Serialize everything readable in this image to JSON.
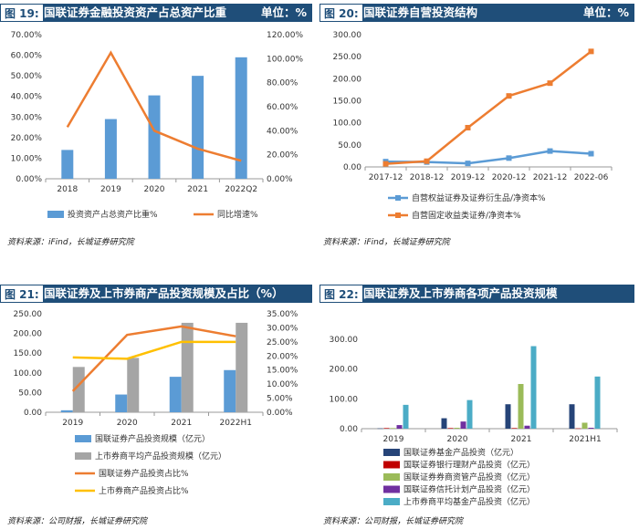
{
  "charts": [
    {
      "id": "19",
      "header": {
        "num": "图 19:",
        "title": "国联证券金融投资资产占总资产比重",
        "unit": "单位：%"
      },
      "source": "资料来源：iFind，长城证券研究院"
    },
    {
      "id": "20",
      "header": {
        "num": "图 20:",
        "title": "国联证券自营投资结构",
        "unit": "单位：%"
      },
      "source": "资料来源：iFind，长城证券研究院"
    },
    {
      "id": "21",
      "header": {
        "num": "图 21:",
        "title": "国联证券及上市券商产品投资规模及占比（%）",
        "unit": ""
      },
      "source": "资料来源：公司财报，长城证券研究院"
    },
    {
      "id": "22",
      "header": {
        "num": "图 22:",
        "title": "国联证券及上市券商各项产品投资规模",
        "unit": ""
      },
      "source": "资料来源：公司财报，长城证券研究院"
    }
  ],
  "colors": {
    "header_bg": "#1f4e79",
    "blue": "#5b9bd5",
    "orange": "#ed7d31",
    "gray": "#a5a5a5",
    "yellow": "#ffc000",
    "navy": "#264478",
    "red": "#c00000",
    "green": "#9bbb59",
    "purple": "#7030a0",
    "teal": "#4bacc6"
  },
  "chart_data": [
    {
      "type": "bar",
      "categories": [
        "2018",
        "2019",
        "2020",
        "2021",
        "2022Q2"
      ],
      "series": [
        {
          "name": "投资资产占总资产比重%",
          "type": "bar",
          "axis": "left",
          "values": [
            14.0,
            29.0,
            40.5,
            50.0,
            59.0
          ]
        },
        {
          "name": "同比增速%",
          "type": "line",
          "axis": "right",
          "values": [
            43.0,
            105.0,
            40.0,
            25.0,
            15.0
          ]
        }
      ],
      "y_left": {
        "min": 0,
        "max": 70,
        "step": 10,
        "ticks": [
          "0.00%",
          "10.00%",
          "20.00%",
          "30.00%",
          "40.00%",
          "50.00%",
          "60.00%",
          "70.00%"
        ]
      },
      "y_right": {
        "min": 0,
        "max": 120,
        "step": 20,
        "ticks": [
          "0.00%",
          "20.00%",
          "40.00%",
          "60.00%",
          "80.00%",
          "100.00%",
          "120.00%"
        ]
      },
      "legend": "bottom"
    },
    {
      "type": "line",
      "categories": [
        "2017-12",
        "2018-12",
        "2019-12",
        "2020-12",
        "2021-12",
        "2022-06"
      ],
      "series": [
        {
          "name": "自营权益证券及证券衍生品/净资本%",
          "values": [
            12,
            11,
            8,
            20,
            36,
            30
          ]
        },
        {
          "name": "自营固定收益类证券/净资本%",
          "values": [
            7,
            13,
            89,
            161,
            190,
            262
          ]
        }
      ],
      "y_left": {
        "min": 0,
        "max": 300,
        "step": 50,
        "ticks": [
          "0.00",
          "50.00",
          "100.00",
          "150.00",
          "200.00",
          "250.00",
          "300.00"
        ]
      },
      "legend": "bottom"
    },
    {
      "type": "bar",
      "categories": [
        "2019",
        "2020",
        "2021",
        "2022H1"
      ],
      "series": [
        {
          "name": "国联证券产品投资规模（亿元）",
          "type": "bar",
          "axis": "left",
          "values": [
            5,
            45,
            90,
            107
          ]
        },
        {
          "name": "上市券商平均产品投资规模（亿元）",
          "type": "bar",
          "axis": "left",
          "values": [
            115,
            138,
            227,
            227
          ]
        },
        {
          "name": "国联证券产品投资占比%",
          "type": "line",
          "axis": "right",
          "values": [
            7.5,
            27.5,
            30.5,
            27.0
          ]
        },
        {
          "name": "上市券商产品投资占比%",
          "type": "line",
          "axis": "right",
          "values": [
            19.5,
            19.0,
            25.0,
            25.0
          ]
        }
      ],
      "y_left": {
        "min": 0,
        "max": 250,
        "step": 50,
        "ticks": [
          "0.00",
          "50.00",
          "100.00",
          "150.00",
          "200.00",
          "250.00"
        ]
      },
      "y_right": {
        "min": 0,
        "max": 35,
        "step": 5,
        "ticks": [
          "0.00%",
          "5.00%",
          "10.00%",
          "15.00%",
          "20.00%",
          "25.00%",
          "30.00%",
          "35.00%"
        ]
      },
      "legend": "bottom"
    },
    {
      "type": "bar",
      "categories": [
        "2019",
        "2020",
        "2021",
        "2021H1"
      ],
      "series": [
        {
          "name": "国联证券基金产品投资（亿元）",
          "values": [
            1,
            35,
            82,
            82
          ]
        },
        {
          "name": "国联证券银行理财产品投资（亿元）",
          "values": [
            2,
            2,
            2,
            1
          ]
        },
        {
          "name": "国联证券券商资管产品投资（亿元）",
          "values": [
            2,
            3,
            150,
            20
          ]
        },
        {
          "name": "国联证券信托计划产品投资（亿元）",
          "values": [
            12,
            24,
            10,
            3
          ]
        },
        {
          "name": "上市券商平均基金产品投资（亿元）",
          "values": [
            80,
            96,
            277,
            175
          ]
        }
      ],
      "extra_series_note": "",
      "y_left": {
        "min": 0,
        "max": 300,
        "step": 100,
        "ticks": [
          "0.00",
          "100.00",
          "200.00",
          "300.00"
        ]
      },
      "legend": "bottom"
    }
  ]
}
